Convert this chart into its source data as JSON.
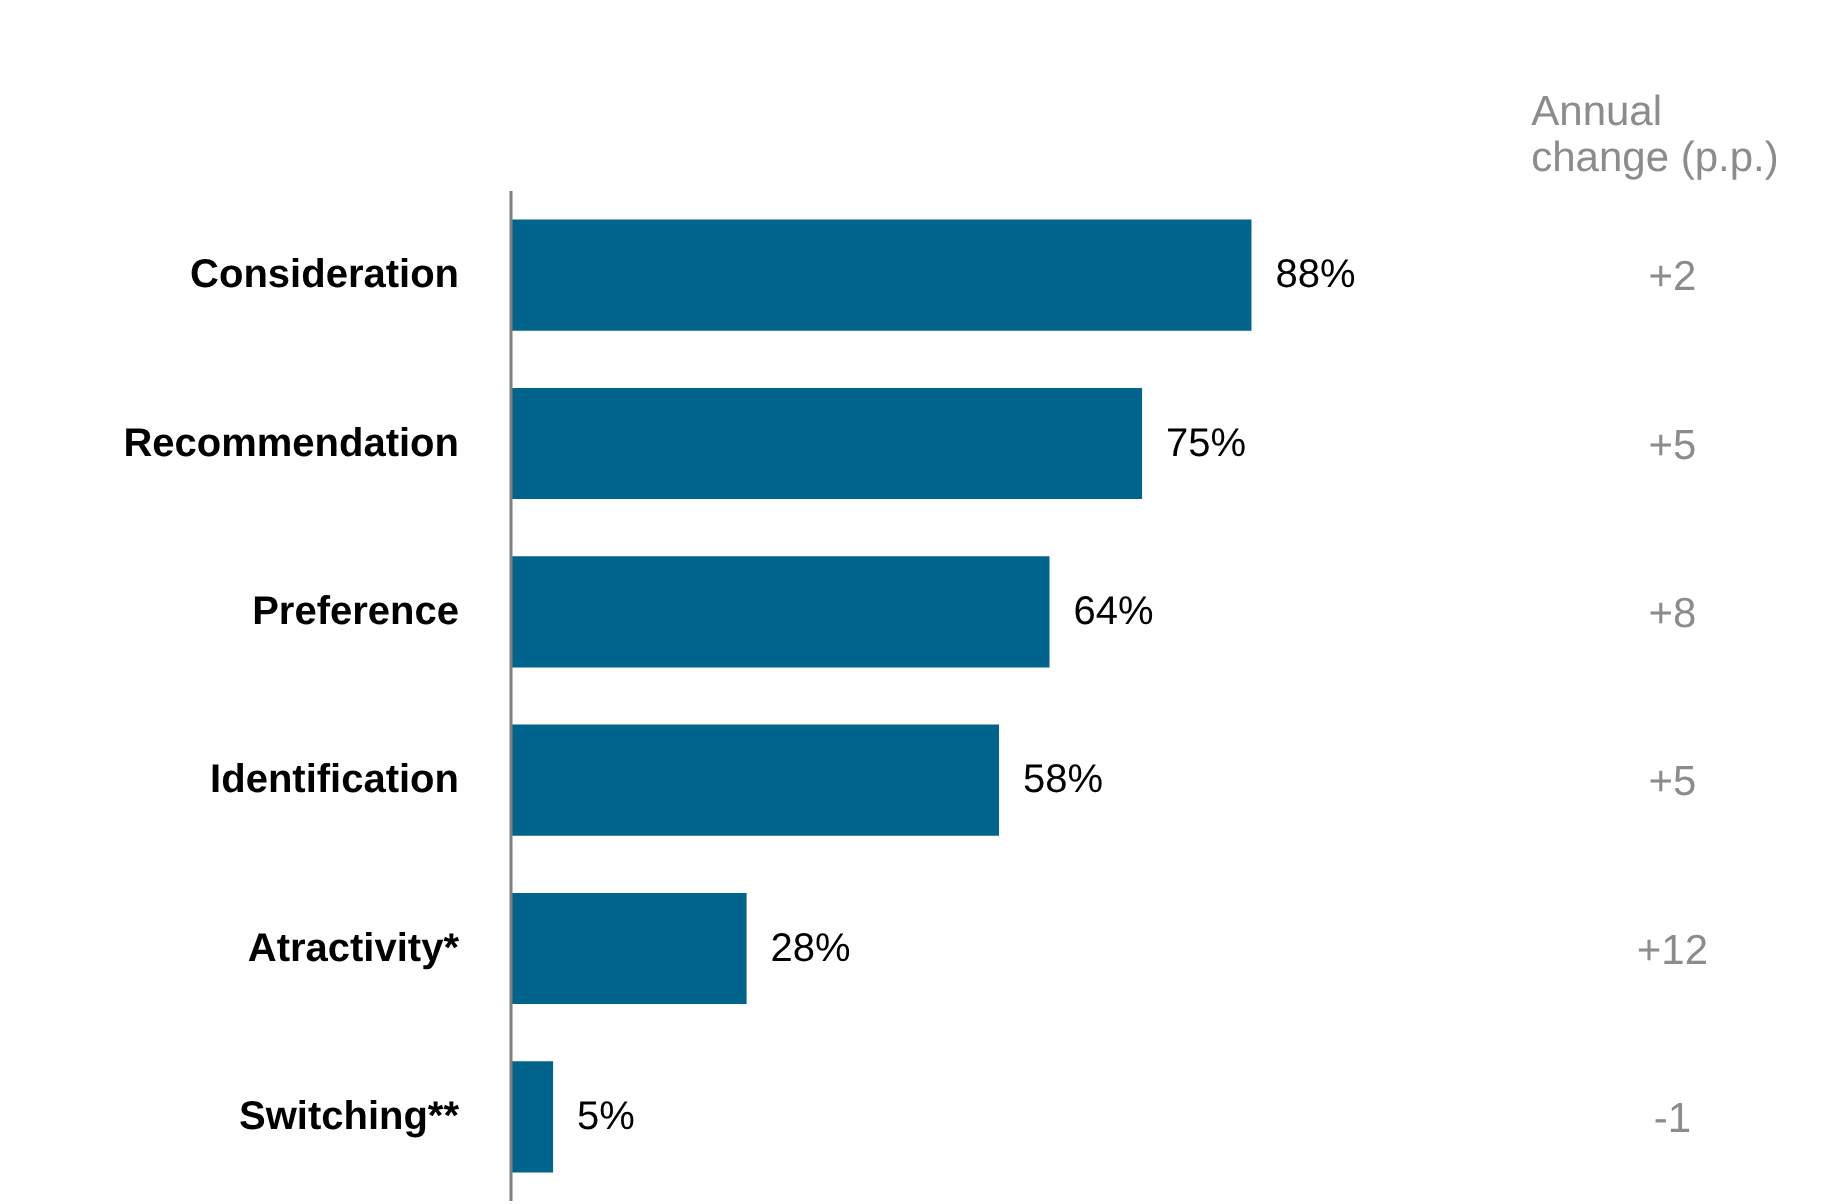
{
  "chart_data": {
    "type": "bar",
    "orientation": "horizontal",
    "categories": [
      "Consideration",
      "Recommendation",
      "Preference",
      "Identification",
      "Atractivity*",
      "Switching**"
    ],
    "values": [
      88,
      75,
      64,
      58,
      28,
      5
    ],
    "color": "#00648c",
    "data_labels": true,
    "value_labels": [
      "88%",
      "75%",
      "64%",
      "58%",
      "28%",
      "5%"
    ],
    "grid": false,
    "tick_labels": "y",
    "annotations": [
      "Annual change (p.p.)",
      "+2",
      "+5",
      "+8",
      "+5",
      "+12",
      "-1"
    ]
  }
}
